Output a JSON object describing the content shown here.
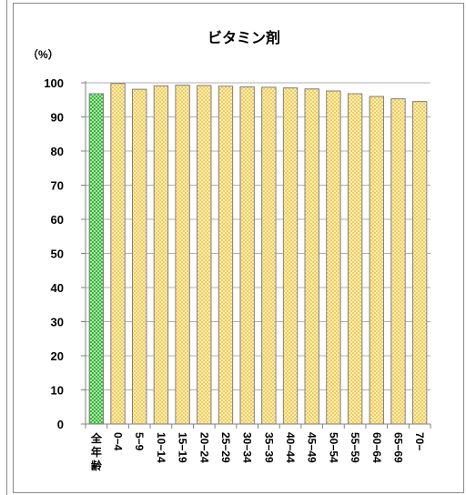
{
  "chart_data": {
    "type": "bar",
    "title": "ビタミン剤",
    "unit_label": "（%）",
    "ylim": [
      0,
      100
    ],
    "yticks": [
      0,
      10,
      20,
      30,
      40,
      50,
      60,
      70,
      80,
      90,
      100
    ],
    "grid": true,
    "categories": [
      "全年齢",
      "0−4",
      "5−9",
      "10−14",
      "15−19",
      "20−24",
      "25−29",
      "30−34",
      "35−39",
      "40−44",
      "45−49",
      "50−54",
      "55−59",
      "60−64",
      "65−69",
      "70−"
    ],
    "values": [
      96.8,
      99.8,
      98.1,
      99.1,
      99.3,
      99.2,
      99.0,
      98.8,
      98.7,
      98.5,
      98.2,
      97.6,
      96.8,
      96.0,
      95.3,
      94.5
    ],
    "colors": {
      "all_ages": "#2eb82e",
      "age_group": "#f2c94c",
      "gridline": "#b0b0b0",
      "axis": "#808080"
    }
  }
}
